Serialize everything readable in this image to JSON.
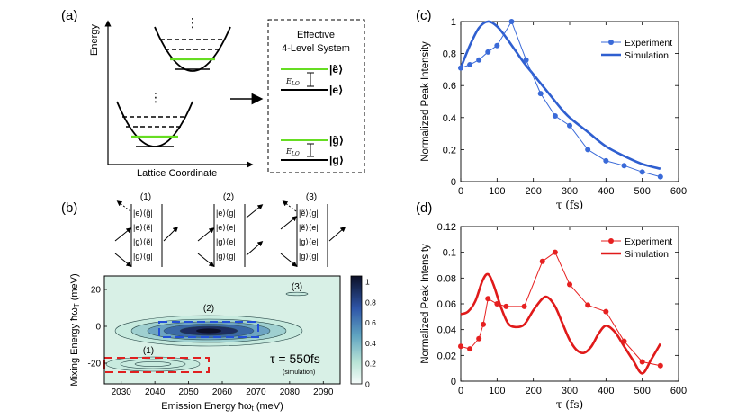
{
  "panel_a": {
    "label": "(a)",
    "ylabel": "Energy",
    "xlabel": "Lattice Coordinate",
    "box_title_line1": "Effective",
    "box_title_line2": "4-Level System",
    "state_e_tilde": "|ẽ⟩",
    "state_e": "|e⟩",
    "state_g_tilde": "|g̃⟩",
    "state_g": "|g⟩",
    "elo_label": "E",
    "elo_sub": "LO",
    "vdots": "⋮"
  },
  "panel_b": {
    "label": "(b)",
    "pathways": [
      {
        "label": "(1)",
        "rows": [
          "|e⟩⟨g̃|",
          "|e⟩⟨ẽ|",
          "|g⟩⟨ẽ|",
          "|g⟩⟨g|"
        ]
      },
      {
        "label": "(2)",
        "rows": [
          "|e⟩⟨g|",
          "|e⟩⟨e|",
          "|g⟩⟨e|",
          "|g⟩⟨g|"
        ]
      },
      {
        "label": "(3)",
        "rows": [
          "|ẽ⟩⟨g|",
          "|ẽ⟩⟨e|",
          "|g⟩⟨e|",
          "|g⟩⟨g|"
        ]
      }
    ],
    "map_ylabel": "Mixing Energy ħω",
    "map_ylabel_sub": "T",
    "map_ylabel_unit": " (meV)",
    "map_xlabel": "Emission Energy ħω",
    "map_xlabel_sub": "t",
    "map_xlabel_unit": " (meV)",
    "xticks": [
      "2030",
      "2040",
      "2050",
      "2060",
      "2070",
      "2080",
      "2090"
    ],
    "yticks": [
      "20",
      "0",
      "-20"
    ],
    "colorbar_ticks": [
      "1",
      "0.8",
      "0.6",
      "0.4",
      "0.2",
      "0"
    ],
    "tau_text": "τ = 550fs",
    "tau_note": "(simulation)",
    "peak_labels": [
      "(1)",
      "(2)",
      "(3)"
    ]
  },
  "panel_c": {
    "label": "(c)",
    "chart_data": {
      "type": "line",
      "ylabel": "Normalized Peak Intensity",
      "xlabel": "τ (fs)",
      "xlim": [
        0,
        600
      ],
      "ylim": [
        0,
        1
      ],
      "xticks": [
        "0",
        "100",
        "200",
        "300",
        "400",
        "500",
        "600"
      ],
      "yticks": [
        "0",
        "0.2",
        "0.4",
        "0.6",
        "0.8",
        "1"
      ],
      "legend": [
        "Experiment",
        "Simulation"
      ],
      "series": [
        {
          "name": "Experiment",
          "x": [
            0,
            25,
            50,
            75,
            100,
            140,
            180,
            220,
            260,
            300,
            350,
            400,
            450,
            500,
            550
          ],
          "y": [
            0.71,
            0.73,
            0.76,
            0.81,
            0.85,
            1.0,
            0.76,
            0.55,
            0.41,
            0.35,
            0.2,
            0.13,
            0.1,
            0.06,
            0.03
          ]
        },
        {
          "name": "Simulation",
          "x": [
            0,
            25,
            50,
            75,
            100,
            125,
            150,
            175,
            200,
            225,
            250,
            275,
            300,
            350,
            400,
            450,
            500,
            550
          ],
          "y": [
            0.71,
            0.85,
            0.96,
            1.0,
            0.97,
            0.9,
            0.82,
            0.74,
            0.67,
            0.6,
            0.53,
            0.46,
            0.4,
            0.31,
            0.22,
            0.16,
            0.11,
            0.08
          ]
        }
      ],
      "colors": {
        "experiment": "#3a6ad8",
        "simulation": "#2f5fd0"
      }
    }
  },
  "panel_d": {
    "label": "(d)",
    "chart_data": {
      "type": "line",
      "ylabel": "Normalized Peak Intensity",
      "xlabel": "τ (fs)",
      "xlim": [
        0,
        600
      ],
      "ylim": [
        0,
        0.12
      ],
      "xticks": [
        "0",
        "100",
        "200",
        "300",
        "400",
        "500",
        "600"
      ],
      "yticks": [
        "0",
        "0.02",
        "0.04",
        "0.06",
        "0.08",
        "0.1",
        "0.12"
      ],
      "legend": [
        "Experiment",
        "Simulation"
      ],
      "series": [
        {
          "name": "Experiment",
          "x": [
            0,
            25,
            50,
            62,
            75,
            100,
            125,
            175,
            225,
            260,
            300,
            350,
            400,
            450,
            500,
            550
          ],
          "y": [
            0.027,
            0.025,
            0.033,
            0.044,
            0.064,
            0.06,
            0.058,
            0.058,
            0.093,
            0.1,
            0.075,
            0.059,
            0.054,
            0.031,
            0.015,
            0.012
          ]
        },
        {
          "name": "Simulation",
          "x": [
            0,
            20,
            40,
            60,
            75,
            90,
            110,
            130,
            150,
            175,
            200,
            225,
            240,
            260,
            280,
            300,
            320,
            340,
            360,
            380,
            400,
            425,
            450,
            475,
            500,
            525,
            550
          ],
          "y": [
            0.052,
            0.054,
            0.062,
            0.078,
            0.083,
            0.075,
            0.058,
            0.045,
            0.042,
            0.044,
            0.055,
            0.064,
            0.065,
            0.058,
            0.045,
            0.032,
            0.024,
            0.022,
            0.027,
            0.037,
            0.043,
            0.038,
            0.027,
            0.016,
            0.006,
            0.017,
            0.029
          ]
        }
      ],
      "colors": {
        "experiment": "#e62020",
        "simulation": "#e01a1a"
      }
    }
  }
}
